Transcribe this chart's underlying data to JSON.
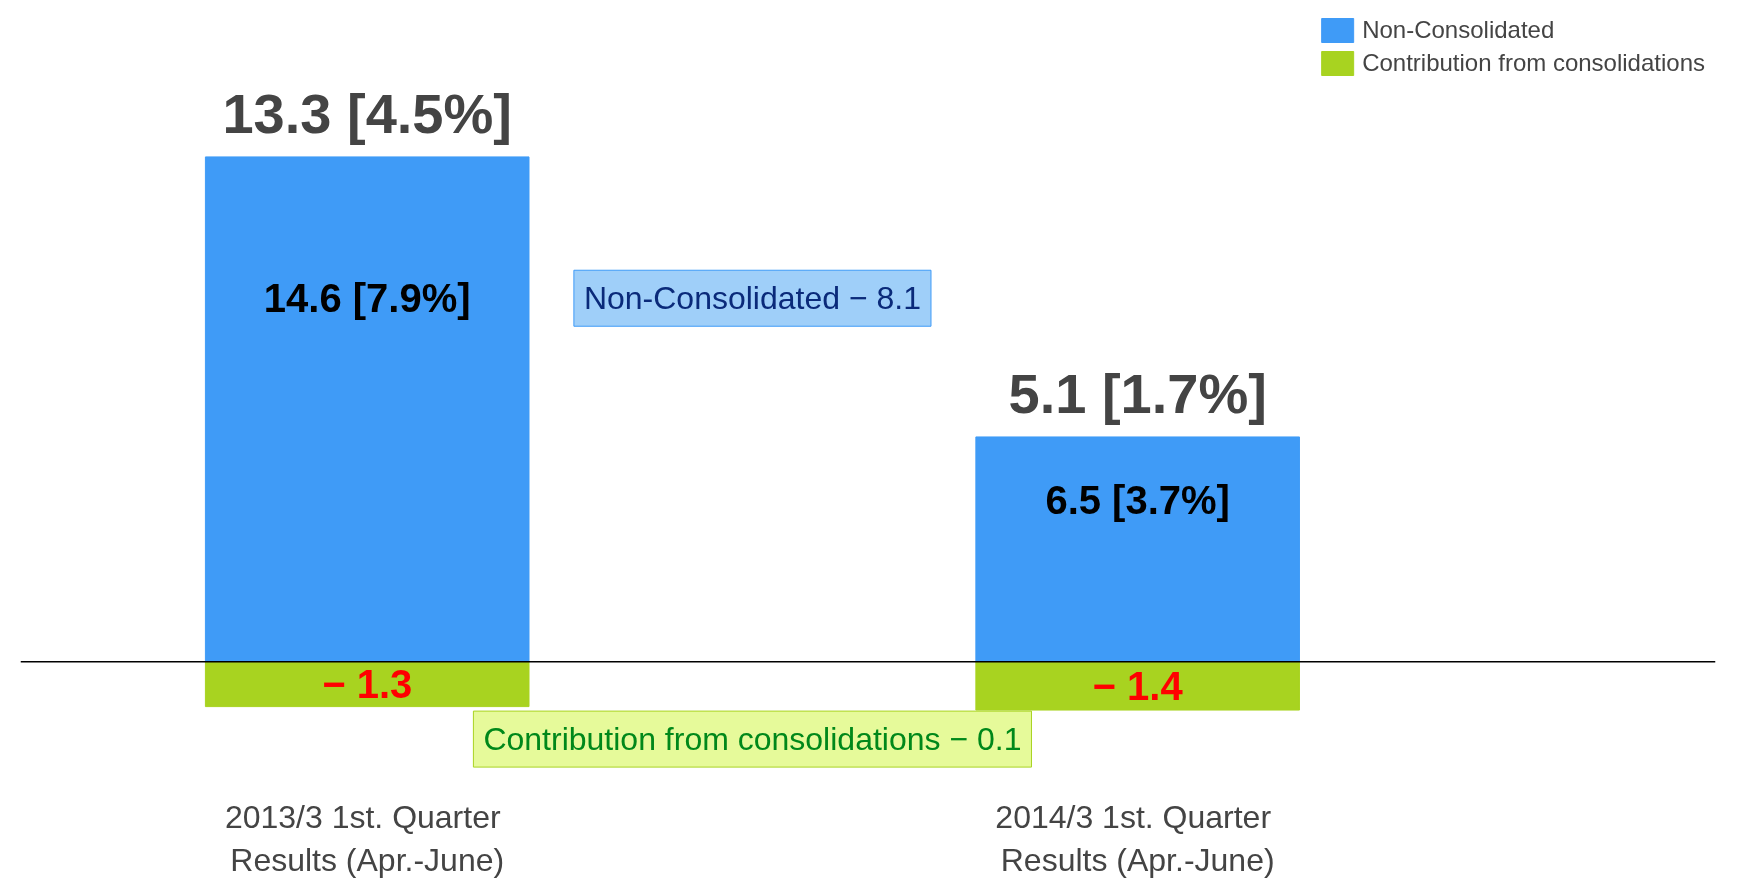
{
  "chart_data": {
    "type": "bar",
    "stacked": true,
    "legend": "top right",
    "categories": [
      "2013/3  1st. Quarter\nResults (Apr.-June)",
      "2014/3  1st. Quarter\nResults (Apr.-June)"
    ],
    "series": [
      {
        "name": "Non-Consolidated",
        "color": "#3f9bf7",
        "values": [
          14.6,
          6.5
        ],
        "value_labels": [
          "14.6 [7.9%]",
          "6.5 [3.7%]"
        ]
      },
      {
        "name": "Contribution from consolidations",
        "color": "#a8d320",
        "values": [
          -1.3,
          -1.4
        ],
        "value_labels": [
          "− 1.3",
          "− 1.4"
        ]
      }
    ],
    "totals": [
      "13.3 [4.5%]",
      "5.1 [1.7%]"
    ],
    "annotations": [
      "Non-Consolidated − 8.1",
      "Contribution from consolidations − 0.1"
    ]
  }
}
